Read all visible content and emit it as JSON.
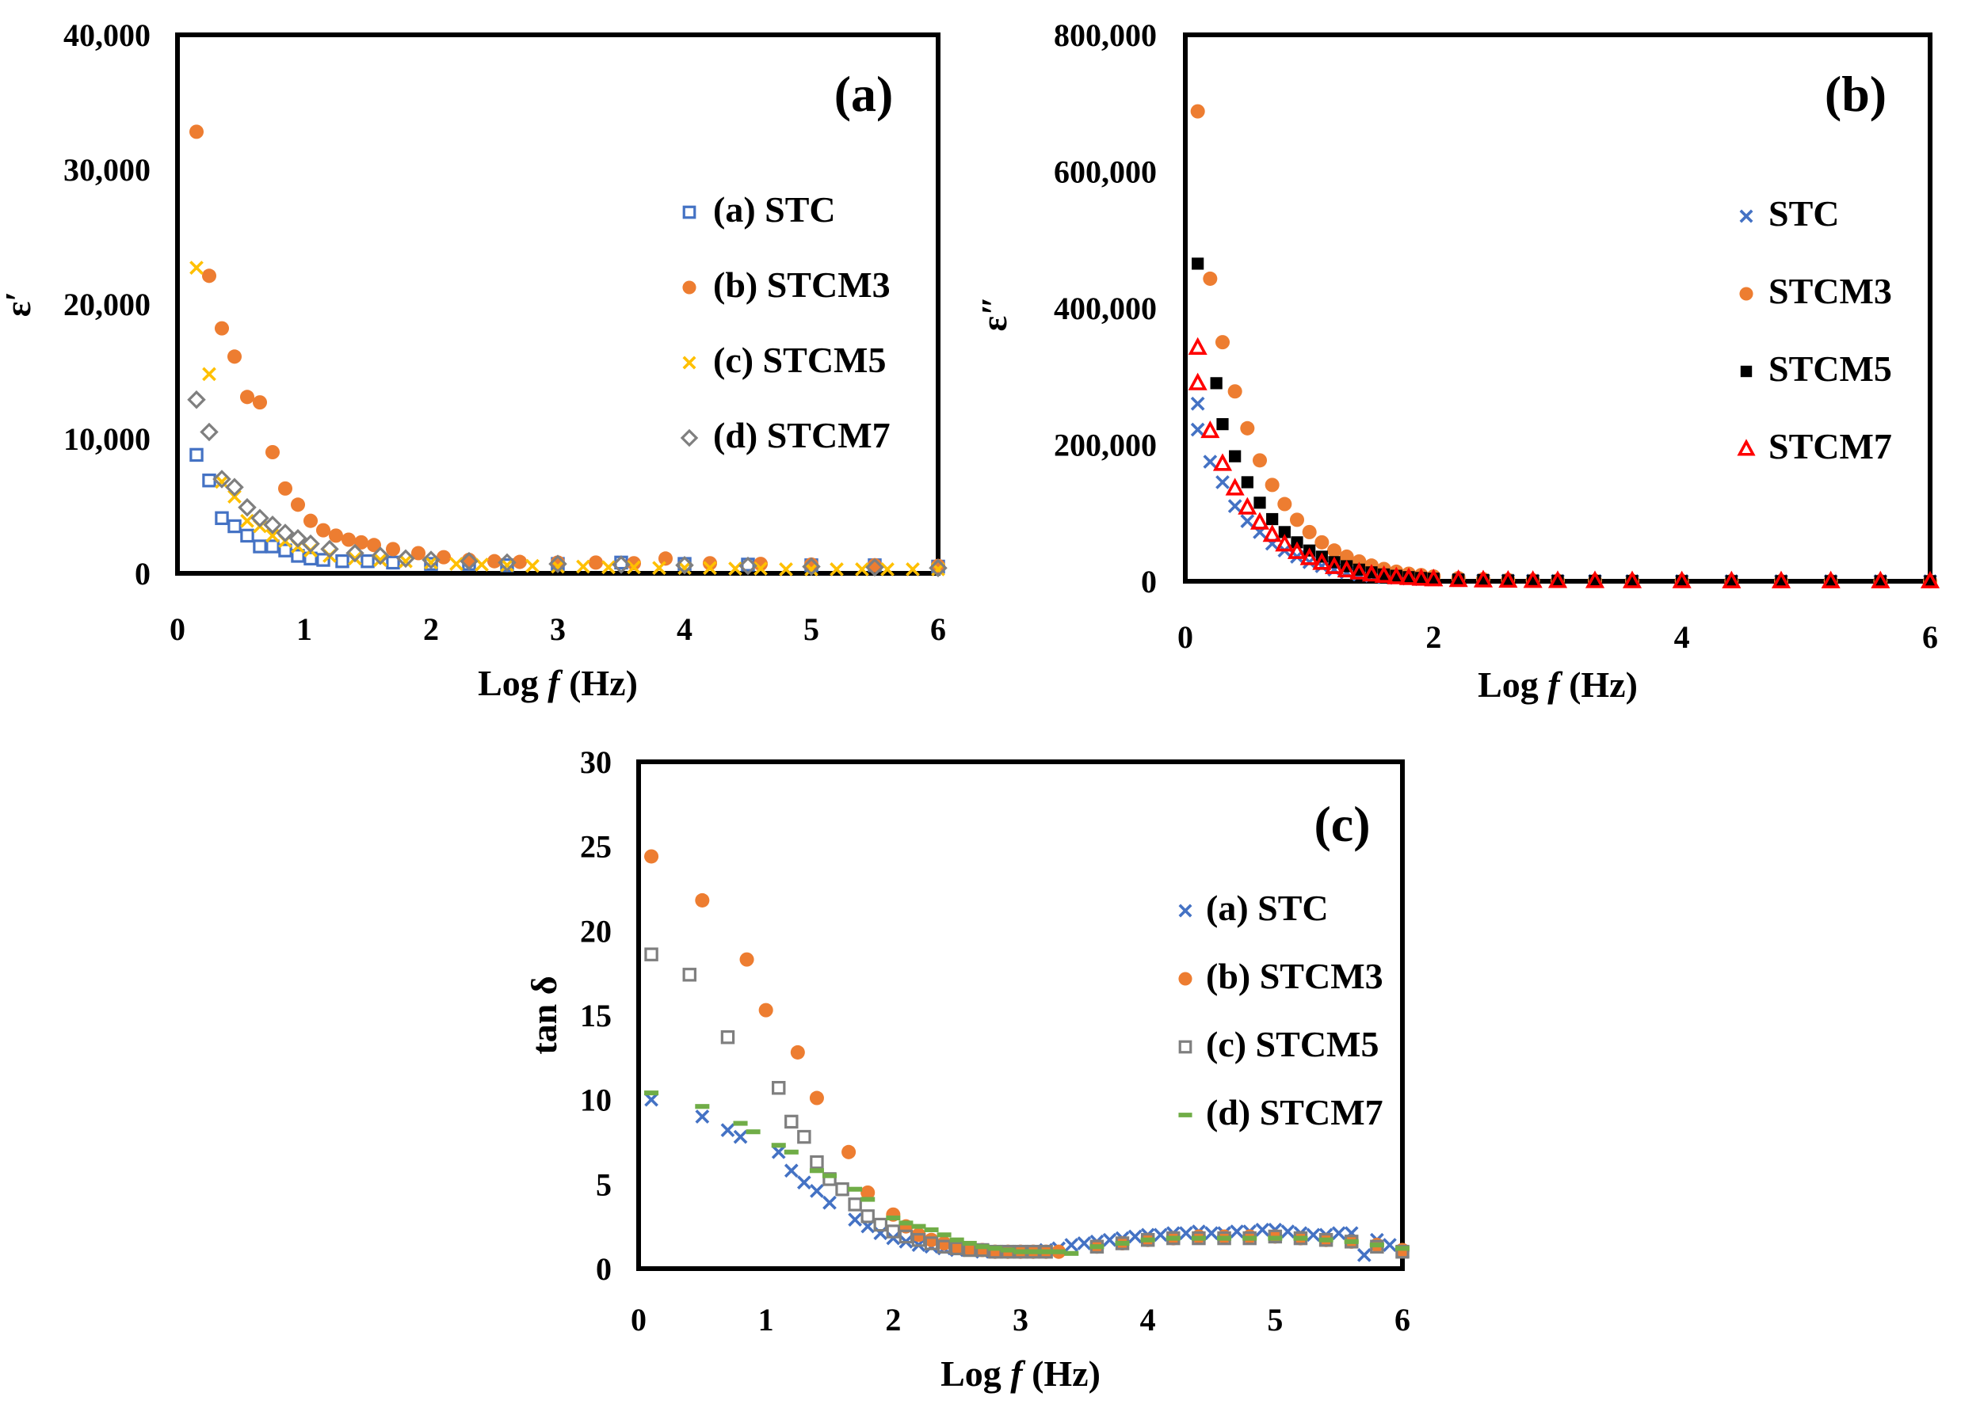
{
  "chart_data": [
    {
      "id": "a",
      "type": "scatter",
      "panel_label": "(a)",
      "xlabel_prefix": "Log ",
      "xlabel_var": "f",
      "xlabel_suffix": " (Hz)",
      "ylabel": "ε′",
      "xlim": [
        0,
        6
      ],
      "ylim": [
        0,
        40000
      ],
      "x_ticks": [
        "0",
        "1",
        "2",
        "3",
        "4",
        "5",
        "6"
      ],
      "y_ticks": [
        "0",
        "10,000",
        "20,000",
        "30,000",
        "40,000"
      ],
      "legend_position": "right",
      "series": [
        {
          "name": "(a) STC",
          "marker": "square-open",
          "color": "#4472C4",
          "x": [
            0.15,
            0.25,
            0.35,
            0.45,
            0.55,
            0.65,
            0.75,
            0.85,
            0.95,
            1.05,
            1.15,
            1.3,
            1.5,
            1.7,
            2.0,
            2.3,
            2.6,
            3.0,
            3.5,
            4.0,
            4.5,
            5.0,
            5.5,
            6.0
          ],
          "y": [
            8800,
            6900,
            4100,
            3500,
            2800,
            2000,
            2000,
            1700,
            1300,
            1100,
            1000,
            900,
            900,
            800,
            700,
            700,
            600,
            700,
            800,
            700,
            650,
            600,
            600,
            500
          ]
        },
        {
          "name": "(b) STCM3",
          "marker": "circle",
          "color": "#ED7D31",
          "x": [
            0.15,
            0.25,
            0.35,
            0.45,
            0.55,
            0.65,
            0.75,
            0.85,
            0.95,
            1.05,
            1.15,
            1.25,
            1.35,
            1.45,
            1.55,
            1.7,
            1.9,
            2.1,
            2.3,
            2.5,
            2.7,
            3.0,
            3.3,
            3.6,
            3.85,
            4.2,
            4.6,
            5.0,
            5.5,
            6.0
          ],
          "y": [
            32800,
            22100,
            18200,
            16100,
            13100,
            12700,
            9000,
            6300,
            5100,
            3900,
            3200,
            2800,
            2500,
            2300,
            2100,
            1800,
            1500,
            1200,
            1000,
            900,
            850,
            800,
            800,
            750,
            1100,
            750,
            700,
            650,
            600,
            550
          ]
        },
        {
          "name": "(c) STCM5",
          "marker": "x",
          "color": "#FFC000",
          "x": [
            0.15,
            0.25,
            0.35,
            0.45,
            0.55,
            0.65,
            0.75,
            0.85,
            0.95,
            1.05,
            1.2,
            1.4,
            1.6,
            1.8,
            2.0,
            2.2,
            2.4,
            2.6,
            2.8,
            3.0,
            3.2,
            3.4,
            3.6,
            3.8,
            4.0,
            4.2,
            4.4,
            4.6,
            4.8,
            5.0,
            5.2,
            5.4,
            5.6,
            5.8,
            6.0
          ],
          "y": [
            22700,
            14800,
            6800,
            5700,
            3900,
            3500,
            2800,
            2400,
            2000,
            1700,
            1300,
            1100,
            1000,
            900,
            800,
            700,
            650,
            600,
            550,
            500,
            500,
            450,
            450,
            400,
            400,
            400,
            350,
            350,
            300,
            300,
            300,
            300,
            300,
            300,
            300
          ]
        },
        {
          "name": "(d) STCM7",
          "marker": "diamond-open",
          "color": "#7F7F7F",
          "x": [
            0.15,
            0.25,
            0.35,
            0.45,
            0.55,
            0.65,
            0.75,
            0.85,
            0.95,
            1.05,
            1.2,
            1.4,
            1.6,
            1.8,
            2.0,
            2.3,
            2.6,
            3.0,
            3.5,
            4.0,
            4.5,
            5.0,
            5.5,
            6.0
          ],
          "y": [
            12900,
            10500,
            7000,
            6400,
            4900,
            4100,
            3600,
            3000,
            2600,
            2200,
            1800,
            1500,
            1300,
            1100,
            1000,
            900,
            800,
            700,
            650,
            600,
            550,
            500,
            450,
            400
          ]
        }
      ]
    },
    {
      "id": "b",
      "type": "scatter",
      "panel_label": "(b)",
      "xlabel_prefix": "Log ",
      "xlabel_var": "f",
      "xlabel_suffix": " (Hz)",
      "ylabel": "ε″",
      "xlim": [
        0,
        6
      ],
      "ylim": [
        0,
        800000
      ],
      "x_ticks": [
        "0",
        "2",
        "4",
        "6"
      ],
      "y_ticks": [
        "0",
        "200,000",
        "400,000",
        "600,000",
        "800,000"
      ],
      "legend_position": "right",
      "series": [
        {
          "name": "STC",
          "marker": "x",
          "color": "#4472C4",
          "x": [
            0.1,
            0.1,
            0.2,
            0.3,
            0.4,
            0.5,
            0.6,
            0.7,
            0.8,
            0.9,
            1.0,
            1.1,
            1.2,
            1.3,
            1.4,
            1.5,
            1.6,
            1.7,
            1.8,
            1.9,
            2.0,
            2.2,
            2.4,
            2.6,
            2.8,
            3.0,
            3.3,
            3.6,
            4.0,
            4.4,
            4.8,
            5.2,
            5.6,
            6.0
          ],
          "y": [
            260000,
            222000,
            175000,
            145000,
            110000,
            88000,
            72000,
            55000,
            45000,
            36000,
            28000,
            22000,
            17000,
            13000,
            10000,
            8000,
            6000,
            5000,
            4000,
            3200,
            2600,
            1800,
            1300,
            1000,
            800,
            600,
            450,
            350,
            250,
            180,
            140,
            100,
            80,
            60
          ]
        },
        {
          "name": "STCM3",
          "marker": "circle",
          "color": "#ED7D31",
          "x": [
            0.1,
            0.2,
            0.3,
            0.4,
            0.5,
            0.6,
            0.7,
            0.8,
            0.9,
            1.0,
            1.1,
            1.2,
            1.3,
            1.4,
            1.5,
            1.6,
            1.7,
            1.8,
            1.9,
            2.0,
            2.2,
            2.4,
            2.6,
            2.8,
            3.0,
            3.3,
            3.6,
            4.0,
            4.4,
            4.8,
            5.2,
            5.6,
            6.0
          ],
          "y": [
            688000,
            443000,
            350000,
            278000,
            224000,
            177000,
            141000,
            113000,
            90000,
            72000,
            57000,
            45000,
            36000,
            29000,
            23000,
            18000,
            14000,
            11000,
            9000,
            7000,
            4500,
            3000,
            2000,
            1400,
            1000,
            700,
            500,
            350,
            250,
            180,
            130,
            100,
            70
          ]
        },
        {
          "name": "STCM5",
          "marker": "square",
          "color": "#000000",
          "x": [
            0.1,
            0.25,
            0.3,
            0.4,
            0.5,
            0.6,
            0.7,
            0.8,
            0.9,
            1.0,
            1.1,
            1.2,
            1.3,
            1.4,
            1.5,
            1.6,
            1.7,
            1.8,
            1.9,
            2.0,
            2.2,
            2.4,
            2.6,
            2.8,
            3.0,
            3.3,
            3.6,
            4.0,
            4.4,
            4.8,
            5.2,
            5.6,
            6.0
          ],
          "y": [
            465000,
            290000,
            230000,
            183000,
            145000,
            115000,
            91000,
            72000,
            57000,
            45000,
            36000,
            28000,
            22000,
            17000,
            13000,
            10000,
            8000,
            6000,
            4800,
            3800,
            2500,
            1700,
            1200,
            800,
            600,
            400,
            300,
            200,
            150,
            110,
            80,
            60,
            40
          ]
        },
        {
          "name": "STCM7",
          "marker": "triangle-open",
          "color": "#FF0000",
          "x": [
            0.1,
            0.1,
            0.2,
            0.3,
            0.4,
            0.5,
            0.6,
            0.7,
            0.8,
            0.9,
            1.0,
            1.1,
            1.2,
            1.3,
            1.4,
            1.5,
            1.6,
            1.7,
            1.8,
            1.9,
            2.0,
            2.2,
            2.4,
            2.6,
            2.8,
            3.0,
            3.3,
            3.6,
            4.0,
            4.4,
            4.8,
            5.2,
            5.6,
            6.0
          ],
          "y": [
            342000,
            290000,
            220000,
            172000,
            136000,
            108000,
            86000,
            68000,
            54000,
            43000,
            34000,
            27000,
            21000,
            16000,
            13000,
            10000,
            8000,
            6000,
            4800,
            3800,
            3000,
            2000,
            1400,
            1000,
            700,
            500,
            350,
            250,
            180,
            130,
            100,
            70,
            50,
            40
          ]
        }
      ]
    },
    {
      "id": "c",
      "type": "scatter",
      "panel_label": "(c)",
      "xlabel_prefix": "Log ",
      "xlabel_var": "f",
      "xlabel_suffix": " (Hz)",
      "ylabel": "tan δ",
      "xlim": [
        0,
        6
      ],
      "ylim": [
        0,
        30
      ],
      "x_ticks": [
        "0",
        "1",
        "2",
        "3",
        "4",
        "5",
        "6"
      ],
      "y_ticks": [
        "0",
        "5",
        "10",
        "15",
        "20",
        "25",
        "30"
      ],
      "legend_position": "right",
      "series": [
        {
          "name": "(a) STC",
          "marker": "x",
          "color": "#4472C4",
          "x": [
            0.1,
            0.5,
            0.7,
            0.8,
            1.1,
            1.2,
            1.3,
            1.4,
            1.5,
            1.7,
            1.8,
            1.9,
            2.0,
            2.1,
            2.2,
            2.3,
            2.4,
            2.5,
            2.6,
            2.7,
            2.8,
            2.9,
            3.0,
            3.1,
            3.2,
            3.3,
            3.4,
            3.5,
            3.6,
            3.7,
            3.8,
            3.9,
            4.0,
            4.1,
            4.2,
            4.3,
            4.4,
            4.5,
            4.6,
            4.7,
            4.8,
            4.9,
            5.0,
            5.1,
            5.2,
            5.3,
            5.4,
            5.5,
            5.6,
            5.7,
            5.8,
            5.9,
            6.0
          ],
          "y": [
            10.0,
            9.0,
            8.2,
            7.8,
            6.9,
            5.8,
            5.1,
            4.6,
            3.9,
            2.9,
            2.5,
            2.1,
            1.8,
            1.6,
            1.4,
            1.3,
            1.2,
            1.1,
            1.1,
            1.0,
            1.0,
            1.0,
            1.0,
            1.0,
            1.1,
            1.2,
            1.4,
            1.5,
            1.6,
            1.7,
            1.8,
            1.9,
            2.0,
            2.0,
            2.1,
            2.1,
            2.2,
            2.1,
            2.1,
            2.2,
            2.2,
            2.3,
            2.3,
            2.2,
            2.1,
            2.0,
            2.0,
            2.1,
            2.1,
            0.8,
            1.7,
            1.4,
            1.0
          ]
        },
        {
          "name": "(b) STCM3",
          "marker": "circle",
          "color": "#ED7D31",
          "x": [
            0.1,
            0.5,
            0.85,
            1.0,
            1.25,
            1.4,
            1.65,
            1.8,
            2.0,
            2.1,
            2.2,
            2.3,
            2.4,
            2.5,
            2.6,
            2.7,
            2.8,
            2.9,
            3.0,
            3.1,
            3.2,
            3.3,
            3.6,
            3.8,
            4.0,
            4.2,
            4.4,
            4.6,
            4.8,
            5.0,
            5.2,
            5.4,
            5.6,
            5.8,
            6.0
          ],
          "y": [
            24.4,
            21.8,
            18.3,
            15.3,
            12.8,
            10.1,
            6.9,
            4.5,
            3.2,
            2.5,
            2.0,
            1.7,
            1.5,
            1.3,
            1.2,
            1.1,
            1.0,
            1.0,
            1.0,
            1.0,
            1.0,
            1.0,
            1.3,
            1.5,
            1.7,
            1.8,
            1.9,
            1.9,
            1.9,
            1.9,
            1.8,
            1.7,
            1.6,
            1.4,
            1.1
          ]
        },
        {
          "name": "(c) STCM5",
          "marker": "square-open",
          "color": "#7F7F7F",
          "x": [
            0.1,
            0.4,
            0.7,
            1.1,
            1.2,
            1.3,
            1.4,
            1.5,
            1.6,
            1.7,
            1.8,
            1.9,
            2.0,
            2.1,
            2.2,
            2.3,
            2.4,
            2.5,
            2.6,
            2.7,
            2.8,
            2.9,
            3.0,
            3.1,
            3.2,
            3.6,
            3.8,
            4.0,
            4.2,
            4.4,
            4.6,
            4.8,
            5.0,
            5.2,
            5.4,
            5.6,
            5.8,
            6.0
          ],
          "y": [
            18.6,
            17.4,
            13.7,
            10.7,
            8.7,
            7.8,
            6.3,
            5.3,
            4.7,
            3.8,
            3.1,
            2.6,
            2.2,
            1.9,
            1.7,
            1.5,
            1.3,
            1.2,
            1.1,
            1.1,
            1.0,
            1.0,
            1.0,
            1.0,
            1.0,
            1.3,
            1.5,
            1.7,
            1.8,
            1.8,
            1.8,
            1.8,
            1.9,
            1.8,
            1.7,
            1.6,
            1.3,
            1.0
          ]
        },
        {
          "name": "(d) STCM7",
          "marker": "dash",
          "color": "#70AD47",
          "x": [
            0.1,
            0.5,
            0.8,
            0.9,
            1.1,
            1.2,
            1.4,
            1.5,
            1.7,
            1.8,
            2.0,
            2.1,
            2.2,
            2.3,
            2.4,
            2.5,
            2.6,
            2.7,
            2.8,
            2.9,
            3.0,
            3.1,
            3.2,
            3.3,
            3.4,
            3.6,
            3.8,
            4.0,
            4.2,
            4.4,
            4.6,
            4.8,
            5.0,
            5.2,
            5.4,
            5.6,
            5.8,
            6.0
          ],
          "y": [
            10.4,
            9.6,
            8.6,
            8.1,
            7.3,
            6.9,
            5.8,
            5.5,
            4.7,
            4.1,
            3.0,
            2.7,
            2.5,
            2.3,
            2.0,
            1.7,
            1.5,
            1.3,
            1.2,
            1.1,
            1.0,
            1.0,
            1.0,
            1.0,
            0.9,
            1.3,
            1.5,
            1.7,
            1.8,
            1.8,
            1.8,
            1.8,
            1.8,
            1.8,
            1.7,
            1.6,
            1.4,
            1.2
          ]
        }
      ]
    }
  ]
}
